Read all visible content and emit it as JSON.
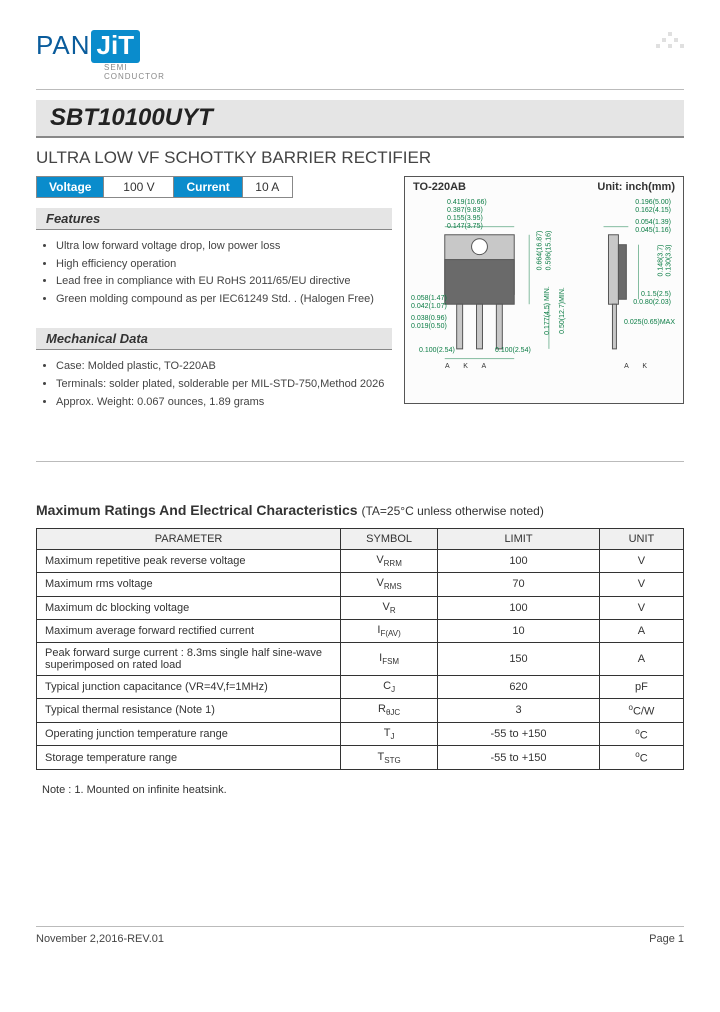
{
  "logo": {
    "pan": "PAN",
    "jit": "JiT",
    "sub": "SEMI\nCONDUCTOR"
  },
  "part_number": "SBT10100UYT",
  "title": "ULTRA LOW VF SCHOTTKY BARRIER RECTIFIER",
  "specs": {
    "voltage_label": "Voltage",
    "voltage_value": "100 V",
    "current_label": "Current",
    "current_value": "10 A"
  },
  "features": {
    "heading": "Features",
    "items": [
      "Ultra low forward voltage drop, low power loss",
      "High efficiency operation",
      "Lead free in compliance with EU RoHS 2011/65/EU directive",
      "Green molding compound as per IEC61249 Std. . (Halogen Free)"
    ]
  },
  "mechanical": {
    "heading": "Mechanical Data",
    "items": [
      "Case: Molded plastic, TO-220AB",
      "Terminals: solder plated, solderable per MIL-STD-750,Method 2026",
      "Approx. Weight: 0.067 ounces, 1.89 grams"
    ]
  },
  "package": {
    "name": "TO-220AB",
    "unit_label": "Unit: inch(mm)",
    "dims_left": [
      "0.419(10.66)",
      "0.387(9.83)",
      "0.155(3.95)",
      "0.147(3.75)"
    ],
    "dims_left2": [
      "0.058(1.47)",
      "0.042(1.07)",
      "0.038(0.96)",
      "0.019(0.50)",
      "0.100(2.54)"
    ],
    "dims_mid": [
      "0.664(16.87)",
      "0.596(15.16)",
      "0.177(4.5) MIN.",
      "0.50(12.7)MIN.",
      "0.100(2.54)"
    ],
    "dims_right": [
      "0.196(5.00)",
      "0.162(4.15)",
      "0.054(1.39)",
      "0.045(1.16)",
      "0.148(3.7)",
      "0.130(3.3)",
      "0.1.5(2.5)",
      "0.0.80(2.03)",
      "0.025(0.65)MAX"
    ],
    "pins": "A   K   A",
    "pins2": "A    K"
  },
  "ratings": {
    "title": "Maximum Ratings And Electrical Characteristics",
    "condition": "(TA=25°C unless otherwise noted)",
    "head": {
      "param": "PARAMETER",
      "symbol": "SYMBOL",
      "limit": "LIMIT",
      "unit": "UNIT"
    },
    "rows": [
      {
        "p": "Maximum repetitive peak reverse voltage",
        "s": "VRRM",
        "l": "100",
        "u": "V"
      },
      {
        "p": "Maximum rms voltage",
        "s": "VRMS",
        "l": "70",
        "u": "V"
      },
      {
        "p": "Maximum dc blocking voltage",
        "s": "VR",
        "l": "100",
        "u": "V"
      },
      {
        "p": "Maximum average forward rectified current",
        "s": "IF(AV)",
        "l": "10",
        "u": "A"
      },
      {
        "p": "Peak forward surge current : 8.3ms single half sine-wave superimposed on rated load",
        "s": "IFSM",
        "l": "150",
        "u": "A"
      },
      {
        "p": "Typical junction capacitance (VR=4V,f=1MHz)",
        "s": "CJ",
        "l": "620",
        "u": "pF"
      },
      {
        "p": "Typical thermal resistance (Note 1)",
        "s": "RθJC",
        "l": "3",
        "u": "°C/W"
      },
      {
        "p": "Operating junction temperature range",
        "s": "TJ",
        "l": "-55 to +150",
        "u": "°C"
      },
      {
        "p": "Storage temperature range",
        "s": "TSTG",
        "l": "-55 to +150",
        "u": "°C"
      }
    ]
  },
  "note": "Note : 1. Mounted on infinite heatsink.",
  "footer": {
    "left": "November 2,2016-REV.01",
    "right": "Page 1"
  },
  "colors": {
    "brand_blue": "#0a8ccc",
    "dark_blue": "#0a5c9c",
    "section_bg": "#e5e5e5",
    "dim_green": "#0a7c44"
  }
}
